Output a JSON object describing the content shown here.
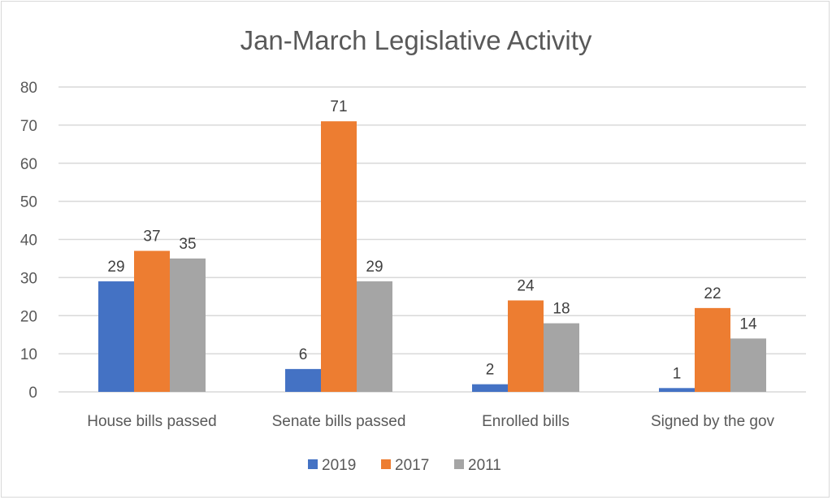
{
  "chart_data": {
    "type": "bar",
    "title": "Jan-March Legislative Activity",
    "xlabel": "",
    "ylabel": "",
    "categories": [
      "House bills passed",
      "Senate bills passed",
      "Enrolled bills",
      "Signed by the gov"
    ],
    "series": [
      {
        "name": "2019",
        "color": "#4472c4",
        "values": [
          29,
          6,
          2,
          1
        ]
      },
      {
        "name": "2017",
        "color": "#ed7d31",
        "values": [
          37,
          71,
          24,
          22
        ]
      },
      {
        "name": "2011",
        "color": "#a5a5a5",
        "values": [
          35,
          29,
          18,
          14
        ]
      }
    ],
    "ylim": [
      0,
      80
    ],
    "yticks": [
      0,
      10,
      20,
      30,
      40,
      50,
      60,
      70,
      80
    ],
    "grid": true,
    "legend_position": "bottom",
    "data_labels": true
  }
}
